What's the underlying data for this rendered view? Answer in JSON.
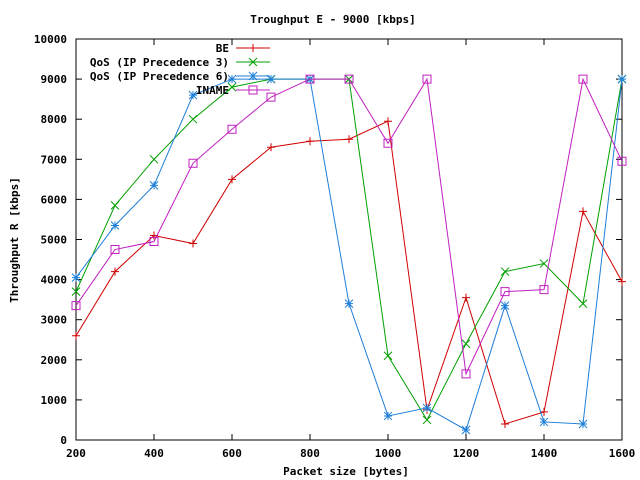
{
  "chart_data": {
    "type": "line",
    "title": "Troughput E - 9000 [kbps]",
    "xlabel": "Packet size [bytes]",
    "ylabel": "Throughput R [kbps]",
    "xlim": [
      200,
      1600
    ],
    "ylim": [
      0,
      10000
    ],
    "x_ticks": [
      200,
      400,
      600,
      800,
      1000,
      1200,
      1400,
      1600
    ],
    "y_ticks": [
      0,
      1000,
      2000,
      3000,
      4000,
      5000,
      6000,
      7000,
      8000,
      9000,
      10000
    ],
    "grid": false,
    "legend_position": "top-right",
    "series": [
      {
        "name": "BE",
        "color": "#d00000",
        "marker": "plus",
        "x": [
          200,
          300,
          400,
          500,
          600,
          700,
          800,
          900,
          1000,
          1100,
          1200,
          1300,
          1400,
          1500,
          1600
        ],
        "values": [
          2600,
          4200,
          5100,
          4900,
          6500,
          7300,
          7450,
          7500,
          7950,
          750,
          3550,
          400,
          700,
          5700,
          3950
        ]
      },
      {
        "name": "QoS (IP Precedence 3)",
        "color": "#00a000",
        "marker": "cross",
        "x": [
          200,
          300,
          400,
          500,
          600,
          700,
          800,
          900,
          1000,
          1100,
          1200,
          1300,
          1400,
          1500,
          1600
        ],
        "values": [
          3700,
          5850,
          7000,
          8000,
          8800,
          9000,
          9000,
          9000,
          2100,
          500,
          2400,
          4200,
          4400,
          3400,
          9000
        ]
      },
      {
        "name": "QoS (IP Precedence 6)",
        "color": "#1e7fd8",
        "marker": "star",
        "x": [
          200,
          300,
          400,
          500,
          600,
          700,
          800,
          900,
          1000,
          1100,
          1200,
          1300,
          1400,
          1500,
          1600
        ],
        "values": [
          4050,
          5350,
          6350,
          8600,
          9000,
          9000,
          9000,
          3400,
          600,
          800,
          250,
          3350,
          450,
          400,
          9000
        ]
      },
      {
        "name": "INAME",
        "color": "#c020c0",
        "marker": "square",
        "x": [
          200,
          300,
          400,
          500,
          600,
          700,
          800,
          900,
          1000,
          1100,
          1200,
          1300,
          1400,
          1500,
          1600
        ],
        "values": [
          3350,
          4750,
          4950,
          6900,
          7750,
          8550,
          9000,
          9000,
          7400,
          9000,
          1650,
          3700,
          3750,
          9000,
          6950
        ]
      }
    ]
  }
}
